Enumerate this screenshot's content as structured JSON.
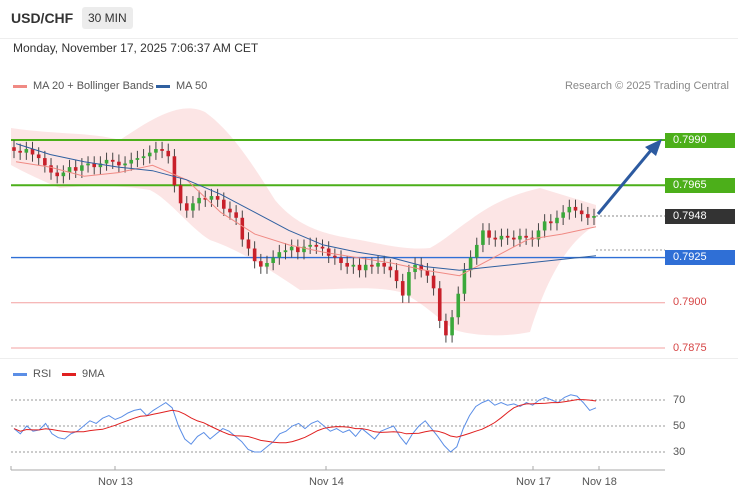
{
  "header": {
    "pair": "USD/CHF",
    "timeframe": "30 MIN",
    "datetime": "Monday, November 17, 2025 7:06:37 AM CET"
  },
  "legend": {
    "ma20": "MA 20 + Bollinger Bands",
    "ma50": "MA 50",
    "ma20_color": "#f08a84",
    "ma50_color": "#3060a0",
    "research": "Research © 2025 Trading Central"
  },
  "levels": [
    {
      "price": "0.7990",
      "color": "#4caf1a",
      "style": "resistance"
    },
    {
      "price": "0.7965",
      "color": "#4caf1a",
      "style": "resistance"
    },
    {
      "price": "0.7948",
      "color": "#333333",
      "style": "current"
    },
    {
      "price": "0.7925",
      "color": "#2f6fd6",
      "style": "pivot"
    },
    {
      "price": "0.7900",
      "color": "#d64545",
      "style": "support"
    },
    {
      "price": "0.7875",
      "color": "#d64545",
      "style": "support"
    }
  ],
  "rsi_legend": {
    "rsi": "RSI",
    "ma9": "9MA",
    "rsi_color": "#5b8ee6",
    "ma9_color": "#e02020"
  },
  "rsi_axis": [
    "70",
    "50",
    "30"
  ],
  "x_axis": [
    "Nov 13",
    "Nov 14",
    "Nov 17",
    "Nov 18"
  ],
  "chart_data": {
    "type": "line",
    "title": "USD/CHF",
    "series": [
      {
        "name": "MA 20 + Bollinger Bands",
        "values": [
          0.7978,
          0.7975,
          0.797,
          0.7972,
          0.7976,
          0.7968,
          0.795,
          0.7938,
          0.7932,
          0.7928,
          0.7925,
          0.7922,
          0.7918,
          0.7915,
          0.7925,
          0.7935,
          0.7938,
          0.7942
        ]
      },
      {
        "name": "MA 50",
        "values": [
          0.7988,
          0.7982,
          0.7978,
          0.7975,
          0.7973,
          0.7968,
          0.796,
          0.795,
          0.794,
          0.7932,
          0.7928,
          0.7925,
          0.792,
          0.7918,
          0.792,
          0.7922,
          0.7924,
          0.7926
        ]
      }
    ],
    "ylim": [
      0.787,
      0.8
    ],
    "levels": [
      0.799,
      0.7965,
      0.7948,
      0.7925,
      0.79,
      0.7875
    ],
    "rsi": {
      "ylim": [
        20,
        80
      ],
      "ticks": [
        70,
        50,
        30
      ]
    }
  }
}
